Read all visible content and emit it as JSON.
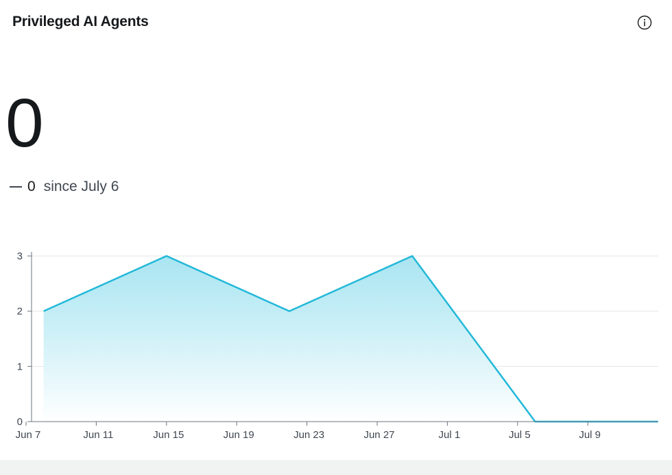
{
  "widget": {
    "title": "Privileged AI Agents",
    "info_icon": "info-circle-icon",
    "value": "0",
    "delta_icon": "dash-icon",
    "delta_value": "0",
    "delta_label": "since July 6"
  },
  "colors": {
    "line": "#22b8d8",
    "fill_top": "#9fe2f0",
    "fill_bottom": "#ffffff",
    "grid": "#e2e4e6",
    "axis": "#6b7480",
    "text": "#3f4750"
  },
  "chart_data": {
    "type": "area",
    "title": "",
    "xlabel": "",
    "ylabel": "",
    "x_ticks": [
      "Jun 7",
      "Jun 11",
      "Jun 15",
      "Jun 19",
      "Jun 23",
      "Jun 27",
      "Jul 1",
      "Jul 5",
      "Jul 9"
    ],
    "y_ticks": [
      0,
      1,
      2,
      3
    ],
    "ylim": [
      0,
      3
    ],
    "xlim": [
      "2025-06-07",
      "2025-07-13"
    ],
    "grid": true,
    "series": [
      {
        "x": [
          "2025-06-08",
          "2025-06-15",
          "2025-06-22",
          "2025-06-29",
          "2025-07-06",
          "2025-07-13"
        ],
        "values": [
          2,
          3,
          2,
          3,
          0,
          0
        ]
      }
    ]
  }
}
